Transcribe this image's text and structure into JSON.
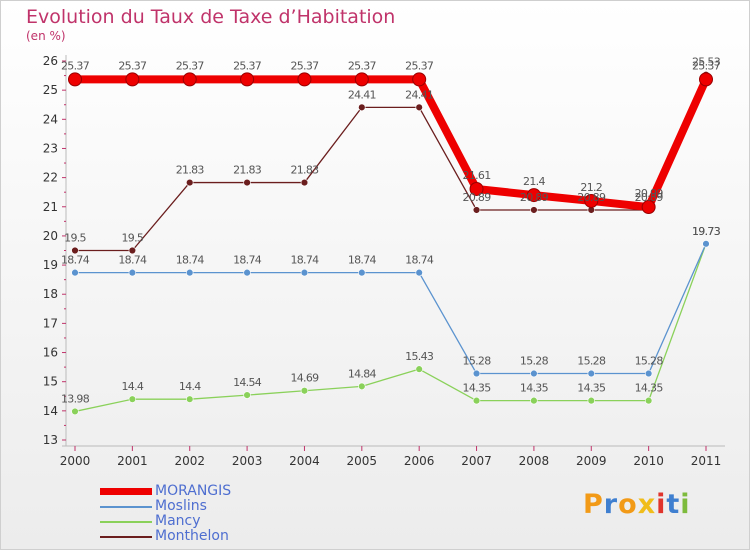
{
  "chart_data": {
    "type": "line",
    "title": "Evolution du Taux de Taxe d’Habitation",
    "subtitle": "(en %)",
    "x": [
      "2000",
      "2001",
      "2002",
      "2003",
      "2004",
      "2005",
      "2006",
      "2007",
      "2008",
      "2009",
      "2010",
      "2011"
    ],
    "y_ticks": [
      "13",
      "14",
      "15",
      "16",
      "17",
      "18",
      "19",
      "20",
      "21",
      "22",
      "23",
      "24",
      "25",
      "26"
    ],
    "ylim": [
      13,
      26
    ],
    "grid": false,
    "legend_position": "bottom-left",
    "series": [
      {
        "name": "MONTHELON",
        "color": "#6b1e1e",
        "values": [
          19.5,
          19.5,
          21.83,
          21.83,
          21.83,
          24.41,
          24.41,
          20.89,
          20.89,
          20.89,
          20.89,
          25.53
        ],
        "labels": [
          "19.5",
          "19.5",
          "21.83",
          "21.83",
          "21.83",
          "24.41",
          "24.41",
          "20.89",
          "20.89",
          "20.89",
          "20.89",
          "25.53"
        ]
      },
      {
        "name": "MANCY",
        "color": "#8ad15a",
        "values": [
          13.98,
          14.4,
          14.4,
          14.54,
          14.69,
          14.84,
          15.43,
          14.35,
          14.35,
          14.35,
          14.35,
          19.73
        ],
        "labels": [
          "13.98",
          "14.4",
          "14.4",
          "14.54",
          "14.69",
          "14.84",
          "15.43",
          "14.35",
          "14.35",
          "14.35",
          "14.35",
          "19.73"
        ]
      },
      {
        "name": "MOSLINS",
        "color": "#5b93cf",
        "values": [
          18.74,
          18.74,
          18.74,
          18.74,
          18.74,
          18.74,
          18.74,
          15.28,
          15.28,
          15.28,
          15.28,
          19.73
        ],
        "labels": [
          "18.74",
          "18.74",
          "18.74",
          "18.74",
          "18.74",
          "18.74",
          "18.74",
          "15.28",
          "15.28",
          "15.28",
          "15.28",
          "19.73"
        ]
      },
      {
        "name": "MORANGIS",
        "color": "#ee0000",
        "values": [
          25.37,
          25.37,
          25.37,
          25.37,
          25.37,
          25.37,
          25.37,
          21.61,
          21.4,
          21.2,
          20.99,
          25.37
        ],
        "labels": [
          "25.37",
          "25.37",
          "25.37",
          "25.37",
          "25.37",
          "25.37",
          "25.37",
          "21.61",
          "21.4",
          "21.2",
          "20.99",
          "25.37"
        ]
      }
    ]
  },
  "legend": [
    {
      "label": "MORANGIS",
      "color": "#ee0000",
      "thickness": "thick"
    },
    {
      "label": "Moslins",
      "color": "#5b93cf",
      "thickness": "thin"
    },
    {
      "label": "Mancy",
      "color": "#8ad15a",
      "thickness": "thin"
    },
    {
      "label": "Monthelon",
      "color": "#6b1e1e",
      "thickness": "thin"
    }
  ],
  "logo": {
    "letters": [
      "P",
      "r",
      "o",
      "x",
      "i",
      "t",
      "i"
    ],
    "colors": [
      "#f29a17",
      "#3f7fd0",
      "#f29a17",
      "#f0bd1a",
      "#e0342c",
      "#3f7fd0",
      "#7dbb3c"
    ]
  }
}
